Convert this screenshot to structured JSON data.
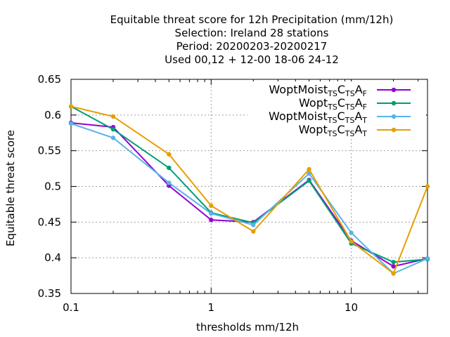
{
  "chart_data": {
    "type": "line",
    "title": [
      "Equitable threat score  for 12h Precipitation (mm/12h)",
      "Selection: Ireland     28 stations",
      "Period: 20200203-20200217",
      "Used  00,12  + 12-00 18-06 24-12"
    ],
    "xlabel": "thresholds mm/12h",
    "ylabel": "Equitable threat score",
    "xscale": "log",
    "xlim": [
      0.1,
      35
    ],
    "ylim": [
      0.35,
      0.65
    ],
    "grid": true,
    "legend_position": "top-right",
    "x_ticks": [
      {
        "value": 0.1,
        "label": "0.1"
      },
      {
        "value": 1,
        "label": "1"
      },
      {
        "value": 10,
        "label": "10"
      }
    ],
    "y_ticks": [
      {
        "value": 0.35,
        "label": "0.35"
      },
      {
        "value": 0.4,
        "label": "0.4"
      },
      {
        "value": 0.45,
        "label": "0.45"
      },
      {
        "value": 0.5,
        "label": "0.5"
      },
      {
        "value": 0.55,
        "label": "0.55"
      },
      {
        "value": 0.6,
        "label": "0.6"
      },
      {
        "value": 0.65,
        "label": "0.65"
      }
    ],
    "x": [
      0.1,
      0.2,
      0.5,
      1,
      2,
      5,
      10,
      20,
      35
    ],
    "series": [
      {
        "name": "WoptMoist",
        "sub1": "TS",
        "mid": "C",
        "sub2": "TS",
        "end": "A",
        "sub3": "F",
        "color": "#9400d3",
        "values": [
          0.589,
          0.583,
          0.501,
          0.453,
          0.45,
          0.509,
          0.424,
          0.388,
          0.399
        ]
      },
      {
        "name": "Wopt",
        "sub1": "TS",
        "mid": "C",
        "sub2": "TS",
        "end": "A",
        "sub3": "F",
        "color": "#009e73",
        "values": [
          0.612,
          0.58,
          0.526,
          0.463,
          0.449,
          0.508,
          0.42,
          0.394,
          0.398
        ]
      },
      {
        "name": "WoptMoist",
        "sub1": "TS",
        "mid": "C",
        "sub2": "TS",
        "end": "A",
        "sub3": "T",
        "color": "#56b4e9",
        "values": [
          0.588,
          0.568,
          0.505,
          0.462,
          0.446,
          0.518,
          0.435,
          0.378,
          0.399
        ]
      },
      {
        "name": "Wopt",
        "sub1": "TS",
        "mid": "C",
        "sub2": "TS",
        "end": "A",
        "sub3": "T",
        "color": "#e69f00",
        "values": [
          0.612,
          0.598,
          0.545,
          0.473,
          0.437,
          0.524,
          0.423,
          0.378,
          0.5
        ]
      }
    ]
  }
}
